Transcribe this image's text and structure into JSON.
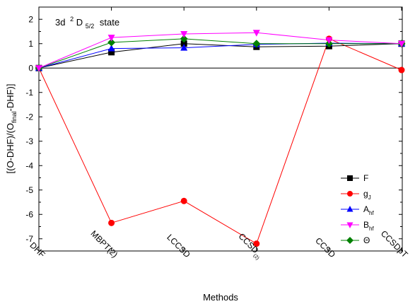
{
  "chart_data": {
    "type": "line",
    "annotation": {
      "prefix": "3d",
      "sup": "2",
      "main": "D",
      "sub": "5/2",
      "suffix": "state"
    },
    "xlabel": "Methods",
    "ylabel": {
      "part1": "[(O-DHF)/(O",
      "sub": "final",
      "part2": "-DHF)]"
    },
    "categories": [
      {
        "text": "DHF",
        "sub": ""
      },
      {
        "text": "MBPT(2)",
        "sub": ""
      },
      {
        "text": "LCCSD",
        "sub": ""
      },
      {
        "text": "CCSD",
        "sub": "(2)"
      },
      {
        "text": "CCSD",
        "sub": ""
      },
      {
        "text": "CCSDpT",
        "sub": ""
      }
    ],
    "ylim": [
      -7.5,
      2.5
    ],
    "yticks": [
      -7,
      -6,
      -5,
      -4,
      -3,
      -2,
      -1,
      0,
      1,
      2
    ],
    "legend_position": "lower-right",
    "series": [
      {
        "name": "F",
        "sub": "",
        "color": "#000000",
        "marker": "square",
        "values": [
          0,
          0.65,
          1.0,
          0.87,
          0.9,
          1.0
        ]
      },
      {
        "name": "g",
        "sub": "J",
        "color": "#ff0000",
        "marker": "circle",
        "values": [
          0,
          -6.35,
          -5.45,
          -7.2,
          1.2,
          -0.08
        ]
      },
      {
        "name": "A",
        "sub": "hf",
        "color": "#0000ff",
        "marker": "triangle-up",
        "values": [
          0,
          0.8,
          0.83,
          0.97,
          1.02,
          1.0
        ]
      },
      {
        "name": "B",
        "sub": "hf",
        "color": "#ff00ff",
        "marker": "triangle-down",
        "values": [
          0,
          1.25,
          1.4,
          1.45,
          1.15,
          1.0
        ]
      },
      {
        "name": "Θ",
        "sub": "",
        "color": "#008000",
        "marker": "diamond",
        "values": [
          0,
          1.05,
          1.2,
          1.0,
          1.0,
          1.0
        ]
      }
    ]
  }
}
